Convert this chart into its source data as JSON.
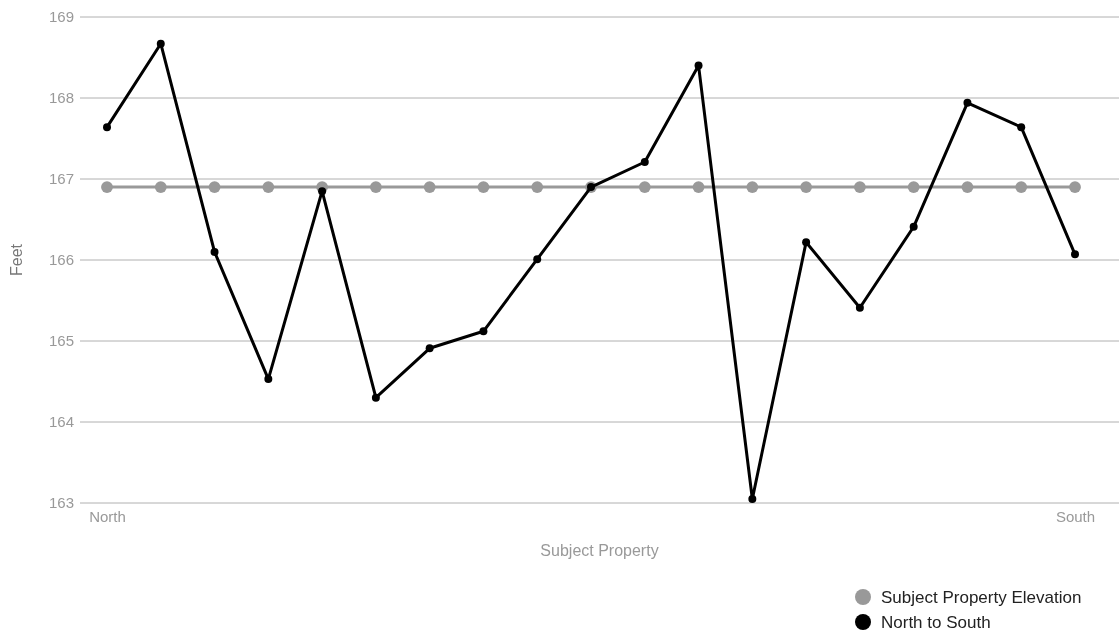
{
  "chart_data": {
    "type": "line",
    "xlabel": "Subject Property",
    "ylabel": "Feet",
    "categories": [
      "North",
      null,
      null,
      null,
      null,
      null,
      null,
      null,
      null,
      null,
      null,
      null,
      null,
      null,
      null,
      null,
      null,
      null,
      "South"
    ],
    "series": [
      {
        "name": "Subject Property Elevation",
        "color": "#999999",
        "values": [
          166.9,
          166.9,
          166.9,
          166.9,
          166.9,
          166.9,
          166.9,
          166.9,
          166.9,
          166.9,
          166.9,
          166.9,
          166.9,
          166.9,
          166.9,
          166.9,
          166.9,
          166.9,
          166.9
        ]
      },
      {
        "name": "North to South",
        "color": "#000000",
        "values": [
          167.64,
          168.67,
          166.1,
          164.53,
          166.85,
          164.3,
          164.91,
          165.12,
          166.01,
          166.9,
          167.21,
          168.4,
          163.05,
          166.22,
          165.41,
          166.41,
          167.94,
          167.64,
          166.07
        ]
      }
    ],
    "ylim": [
      163,
      169
    ],
    "yticks": [
      163,
      164,
      165,
      166,
      167,
      168,
      169
    ],
    "grid": "y",
    "legend": "bottom right",
    "marker": "circle",
    "line_style": "solid"
  }
}
